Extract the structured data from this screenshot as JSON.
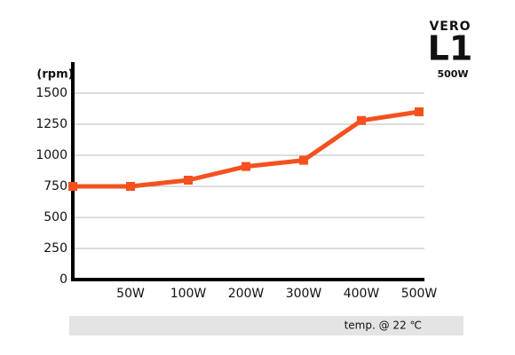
{
  "chart_data": {
    "type": "line",
    "y_label": "(rpm)",
    "categories": [
      null,
      "50W",
      "100W",
      "200W",
      "300W",
      "400W",
      "500W"
    ],
    "values": [
      750,
      750,
      800,
      910,
      960,
      1280,
      1350
    ],
    "color": "#f4511e",
    "ylim": [
      0,
      1750
    ],
    "yticks": [
      0,
      250,
      500,
      750,
      1000,
      1250,
      1500
    ],
    "grid": true,
    "logo": {
      "brand": "VERO",
      "model": "L1",
      "wattage": "500W"
    },
    "footnote": "temp. @ 22 ℃"
  }
}
